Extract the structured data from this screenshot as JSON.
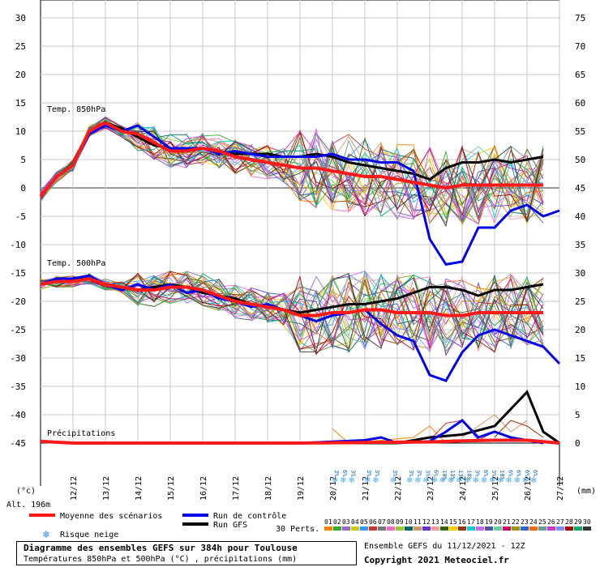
{
  "chart_data": {
    "type": "line",
    "title": "Diagramme des ensembles GEFS sur 384h pour Toulouse",
    "subtitle": "Températures 850hPa et 500hPa (°C) , précipitations (mm)",
    "run_info": "Ensemble GEFS du 11/12/2021 - 12Z",
    "copyright": "Copyright 2021 Meteociel.fr",
    "altitude": "Alt. 196m",
    "left_unit": "(°c)",
    "right_unit": "(mm)",
    "left_ticks": [
      "30",
      "25",
      "20",
      "15",
      "10",
      "5",
      "0",
      "-5",
      "-10",
      "-15",
      "-20",
      "-25",
      "-30",
      "-35",
      "-40",
      "-45"
    ],
    "right_ticks": [
      "75",
      "70",
      "65",
      "60",
      "55",
      "50",
      "45",
      "40",
      "35",
      "30",
      "25",
      "20",
      "15",
      "10",
      "5",
      "0"
    ],
    "date_labels": [
      "12/12",
      "13/12",
      "14/12",
      "15/12",
      "16/12",
      "17/12",
      "18/12",
      "19/12",
      "20/12",
      "21/12",
      "22/12",
      "23/12",
      "24/12",
      "25/12",
      "26/12",
      "27/12"
    ],
    "section_labels": {
      "t850": "Temp. 850hPa",
      "t500": "Temp. 500hPa",
      "precip": "Précipitations"
    },
    "legend": {
      "mean": "Moyenne des scénarios",
      "control": "Run de contrôle",
      "gfs": "Run GFS",
      "snow": "Risque neige",
      "perts": "30 Perts.",
      "member_labels": [
        "01",
        "02",
        "03",
        "04",
        "05",
        "06",
        "07",
        "08",
        "09",
        "10",
        "11",
        "12",
        "13",
        "14",
        "15",
        "16",
        "17",
        "18",
        "19",
        "20",
        "21",
        "22",
        "23",
        "24",
        "25",
        "26",
        "27",
        "28",
        "29",
        "30"
      ]
    },
    "colors": {
      "mean": "#ff1a1a",
      "control": "#0000ee",
      "gfs": "#000000",
      "zero_line": "#999999",
      "members": [
        "#ff7f00",
        "#33aa33",
        "#9966cc",
        "#cccc00",
        "#3399ff",
        "#cc3333",
        "#777777",
        "#ff66cc",
        "#99cc33",
        "#006666",
        "#cc9966",
        "#6633cc",
        "#ff9999",
        "#336600",
        "#ffcc00",
        "#993300",
        "#00cccc",
        "#cc66ff",
        "#555599",
        "#66cc99",
        "#cc0066",
        "#999900",
        "#3366cc",
        "#ff6600",
        "#669999",
        "#cc33cc",
        "#8888ff",
        "#aa0000",
        "#00aa66",
        "#333333"
      ]
    },
    "snow_risk": [
      {
        "day": 9.0,
        "pcts": [
          "3%",
          "6%",
          "3%"
        ]
      },
      {
        "day": 10.0,
        "pcts": [
          "3%",
          "3%"
        ]
      },
      {
        "day": 10.8,
        "pcts": [
          "3%"
        ]
      },
      {
        "day": 11.3,
        "pcts": [
          "3%",
          "3%",
          "3%",
          "6%",
          "10%",
          "13%",
          "13%",
          "10%",
          "3%",
          "6%",
          "3%",
          "10%",
          "6%",
          "6%",
          "6%",
          "6%"
        ]
      }
    ],
    "t850": {
      "mean": [
        [
          0,
          -1.5
        ],
        [
          0.5,
          2
        ],
        [
          1,
          4
        ],
        [
          1.5,
          10
        ],
        [
          2,
          11.5
        ],
        [
          2.5,
          10
        ],
        [
          3,
          9.5
        ],
        [
          3.5,
          8
        ],
        [
          4,
          6.5
        ],
        [
          4.5,
          6.5
        ],
        [
          5,
          7
        ],
        [
          5.5,
          6.5
        ],
        [
          6,
          5.5
        ],
        [
          6.5,
          5
        ],
        [
          7,
          4.5
        ],
        [
          7.5,
          4
        ],
        [
          8,
          3.5
        ],
        [
          8.5,
          3.5
        ],
        [
          9,
          3
        ],
        [
          9.5,
          2.5
        ],
        [
          10,
          2
        ],
        [
          10.5,
          2
        ],
        [
          11,
          1.5
        ],
        [
          11.5,
          1
        ],
        [
          12,
          0.5
        ],
        [
          12.5,
          0
        ],
        [
          13,
          0.5
        ],
        [
          13.5,
          0.5
        ],
        [
          14,
          0.5
        ],
        [
          14.5,
          0.5
        ],
        [
          15,
          0.5
        ],
        [
          15.5,
          0.5
        ]
      ],
      "control": [
        [
          0,
          -1.5
        ],
        [
          0.5,
          2
        ],
        [
          1,
          4
        ],
        [
          1.5,
          9.5
        ],
        [
          2,
          11
        ],
        [
          2.5,
          10
        ],
        [
          3,
          11
        ],
        [
          3.5,
          9
        ],
        [
          4,
          7
        ],
        [
          4.5,
          7
        ],
        [
          5,
          7
        ],
        [
          5.5,
          6
        ],
        [
          6,
          6.5
        ],
        [
          6.5,
          6
        ],
        [
          7,
          5.5
        ],
        [
          7.5,
          5.5
        ],
        [
          8,
          5.5
        ],
        [
          8.5,
          5.5
        ],
        [
          9,
          6
        ],
        [
          9.5,
          5
        ],
        [
          10,
          5
        ],
        [
          10.5,
          4.5
        ],
        [
          11,
          4.5
        ],
        [
          11.5,
          3
        ],
        [
          12,
          -9
        ],
        [
          12.5,
          -13.5
        ],
        [
          13,
          -13
        ],
        [
          13.5,
          -7
        ],
        [
          14,
          -7
        ],
        [
          14.5,
          -4
        ],
        [
          15,
          -3
        ],
        [
          15.5,
          -5
        ],
        [
          16,
          -4
        ]
      ],
      "gfs": [
        [
          0,
          -1.5
        ],
        [
          0.5,
          2
        ],
        [
          1,
          4
        ],
        [
          1.5,
          10
        ],
        [
          2,
          11.5
        ],
        [
          2.5,
          10.5
        ],
        [
          3,
          9
        ],
        [
          3.5,
          7.5
        ],
        [
          4,
          7
        ],
        [
          4.5,
          7
        ],
        [
          5,
          7
        ],
        [
          5.5,
          6.5
        ],
        [
          6,
          6
        ],
        [
          6.5,
          6
        ],
        [
          7,
          6
        ],
        [
          7.5,
          5.5
        ],
        [
          8,
          5.5
        ],
        [
          8.5,
          6
        ],
        [
          9,
          5.5
        ],
        [
          9.5,
          4.5
        ],
        [
          10,
          4
        ],
        [
          10.5,
          3.5
        ],
        [
          11,
          3
        ],
        [
          11.5,
          2.5
        ],
        [
          12,
          1.5
        ],
        [
          12.5,
          3.5
        ],
        [
          13,
          4.5
        ],
        [
          13.5,
          4.5
        ],
        [
          14,
          5
        ],
        [
          14.5,
          4.5
        ],
        [
          15,
          5
        ],
        [
          15.5,
          5.5
        ]
      ]
    },
    "t500": {
      "mean": [
        [
          0,
          -17
        ],
        [
          0.5,
          -16.5
        ],
        [
          1,
          -16.5
        ],
        [
          1.5,
          -16
        ],
        [
          2,
          -17
        ],
        [
          2.5,
          -17.5
        ],
        [
          3,
          -18
        ],
        [
          3.5,
          -18
        ],
        [
          4,
          -17.5
        ],
        [
          4.5,
          -17.5
        ],
        [
          5,
          -18
        ],
        [
          5.5,
          -19
        ],
        [
          6,
          -20
        ],
        [
          6.5,
          -20.5
        ],
        [
          7,
          -21
        ],
        [
          7.5,
          -21.5
        ],
        [
          8,
          -22.5
        ],
        [
          8.5,
          -22.5
        ],
        [
          9,
          -22
        ],
        [
          9.5,
          -22
        ],
        [
          10,
          -21.5
        ],
        [
          10.5,
          -21.5
        ],
        [
          11,
          -22
        ],
        [
          11.5,
          -22
        ],
        [
          12,
          -22
        ],
        [
          12.5,
          -22.5
        ],
        [
          13,
          -22.5
        ],
        [
          13.5,
          -22
        ],
        [
          14,
          -22
        ],
        [
          14.5,
          -22
        ],
        [
          15,
          -22
        ],
        [
          15.5,
          -22
        ]
      ],
      "control": [
        [
          0,
          -17
        ],
        [
          0.5,
          -16
        ],
        [
          1,
          -16
        ],
        [
          1.5,
          -15.5
        ],
        [
          2,
          -17
        ],
        [
          2.5,
          -18
        ],
        [
          3,
          -17
        ],
        [
          3.5,
          -18
        ],
        [
          4,
          -17
        ],
        [
          4.5,
          -18.5
        ],
        [
          5,
          -18
        ],
        [
          5.5,
          -19.5
        ],
        [
          6,
          -20
        ],
        [
          6.5,
          -21
        ],
        [
          7,
          -20.5
        ],
        [
          7.5,
          -21.5
        ],
        [
          8,
          -22.5
        ],
        [
          8.5,
          -23.5
        ],
        [
          9,
          -22.5
        ],
        [
          9.5,
          -22
        ],
        [
          10,
          -21.5
        ],
        [
          10.5,
          -24
        ],
        [
          11,
          -26
        ],
        [
          11.5,
          -27
        ],
        [
          12,
          -33
        ],
        [
          12.5,
          -34
        ],
        [
          13,
          -29
        ],
        [
          13.5,
          -26
        ],
        [
          14,
          -25
        ],
        [
          14.5,
          -26
        ],
        [
          15,
          -27
        ],
        [
          15.5,
          -28
        ],
        [
          16,
          -31
        ]
      ],
      "gfs": [
        [
          0,
          -17
        ],
        [
          0.5,
          -16.5
        ],
        [
          1,
          -16
        ],
        [
          1.5,
          -16
        ],
        [
          2,
          -17
        ],
        [
          2.5,
          -17.5
        ],
        [
          3,
          -18
        ],
        [
          3.5,
          -17.5
        ],
        [
          4,
          -17
        ],
        [
          4.5,
          -17.5
        ],
        [
          5,
          -18.5
        ],
        [
          5.5,
          -19
        ],
        [
          6,
          -19.5
        ],
        [
          6.5,
          -20.5
        ],
        [
          7,
          -21
        ],
        [
          7.5,
          -21.5
        ],
        [
          8,
          -22
        ],
        [
          8.5,
          -21.5
        ],
        [
          9,
          -21
        ],
        [
          9.5,
          -20.5
        ],
        [
          10,
          -20.5
        ],
        [
          10.5,
          -20
        ],
        [
          11,
          -19.5
        ],
        [
          11.5,
          -18.5
        ],
        [
          12,
          -17.5
        ],
        [
          12.5,
          -17.5
        ],
        [
          13,
          -18
        ],
        [
          13.5,
          -19
        ],
        [
          14,
          -18
        ],
        [
          14.5,
          -18
        ],
        [
          15,
          -17.5
        ],
        [
          15.5,
          -17
        ]
      ]
    },
    "precip": {
      "mean": [
        [
          0,
          0.3
        ],
        [
          1,
          0
        ],
        [
          8,
          0
        ],
        [
          10,
          0.1
        ],
        [
          12,
          0.2
        ],
        [
          13,
          0.4
        ],
        [
          14,
          0.5
        ],
        [
          15,
          0.5
        ],
        [
          16,
          0
        ]
      ],
      "control": [
        [
          0,
          0.3
        ],
        [
          1,
          0
        ],
        [
          8,
          0
        ],
        [
          10,
          0.5
        ],
        [
          10.5,
          1
        ],
        [
          11,
          0
        ],
        [
          12,
          0.3
        ],
        [
          12.5,
          2
        ],
        [
          13,
          4
        ],
        [
          13.5,
          1
        ],
        [
          14,
          2
        ],
        [
          14.5,
          1
        ],
        [
          15,
          0.5
        ],
        [
          15.5,
          0
        ]
      ],
      "gfs": [
        [
          0,
          0.3
        ],
        [
          1,
          0
        ],
        [
          8,
          0
        ],
        [
          11,
          0
        ],
        [
          12,
          1
        ],
        [
          13,
          1.5
        ],
        [
          14,
          3
        ],
        [
          14.5,
          6
        ],
        [
          15,
          9
        ],
        [
          15.5,
          2
        ],
        [
          16,
          0
        ]
      ],
      "members": [
        [
          [
            9,
            2.5
          ],
          [
            9.5,
            0
          ],
          [
            11.5,
            1
          ],
          [
            12,
            3
          ],
          [
            12.5,
            0
          ]
        ],
        [
          [
            12,
            0.5
          ],
          [
            12.5,
            3.5
          ],
          [
            13,
            4
          ],
          [
            13.5,
            0.5
          ],
          [
            14,
            2
          ]
        ],
        [
          [
            13,
            1
          ],
          [
            13.5,
            3
          ],
          [
            14,
            5
          ],
          [
            14.5,
            2
          ],
          [
            15,
            4
          ]
        ],
        [
          [
            14,
            1
          ],
          [
            14.5,
            4
          ],
          [
            15,
            3
          ],
          [
            15.5,
            1
          ]
        ]
      ]
    }
  }
}
